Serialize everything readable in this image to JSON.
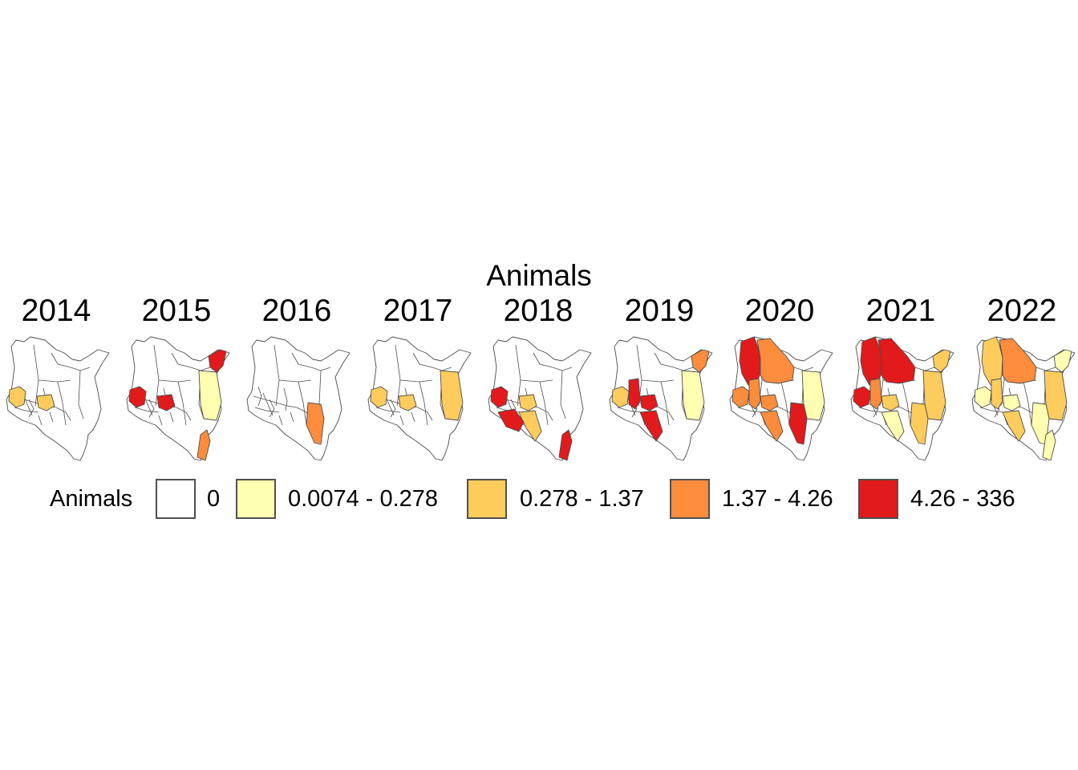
{
  "title": "Animals",
  "legend": {
    "title": "Animals",
    "classes": [
      {
        "label": "0",
        "color": "#ffffff"
      },
      {
        "label": "0.0074 - 0.278",
        "color": "#ffffb2"
      },
      {
        "label": "0.278 - 1.37",
        "color": "#fecc5c"
      },
      {
        "label": "1.37 - 4.26",
        "color": "#fd8d3c"
      },
      {
        "label": "4.26 - 336",
        "color": "#e31a1c"
      }
    ]
  },
  "panels": [
    {
      "year": "2014",
      "classes": {
        "west": 2,
        "central": 2
      }
    },
    {
      "year": "2015",
      "classes": {
        "northeast": 4,
        "east": 1,
        "coast": 3,
        "west": 4,
        "central": 4
      }
    },
    {
      "year": "2016",
      "classes": {
        "southeast": 3
      }
    },
    {
      "year": "2017",
      "classes": {
        "east": 2,
        "west": 2,
        "central": 2
      }
    },
    {
      "year": "2018",
      "classes": {
        "southwest": 4,
        "coast": 4,
        "west": 4,
        "central": 2,
        "south": 2
      }
    },
    {
      "year": "2019",
      "classes": {
        "northeast": 3,
        "east": 1,
        "west": 2,
        "rift": 4,
        "central": 4,
        "south": 4
      }
    },
    {
      "year": "2020",
      "classes": {
        "northwest": 4,
        "north": 3,
        "east": 1,
        "southeast": 4,
        "west": 3,
        "rift": 3,
        "central": 3,
        "south": 3
      }
    },
    {
      "year": "2021",
      "classes": {
        "northwest": 4,
        "north": 4,
        "northeast": 2,
        "east": 2,
        "west": 4,
        "rift": 3,
        "central": 2,
        "south": 1,
        "southeast": 2
      }
    },
    {
      "year": "2022",
      "classes": {
        "northwest": 2,
        "north": 3,
        "northeast": 1,
        "east": 2,
        "west": 1,
        "rift": 2,
        "central": 1,
        "south": 2,
        "southeast": 1,
        "coast": 1
      }
    }
  ]
}
